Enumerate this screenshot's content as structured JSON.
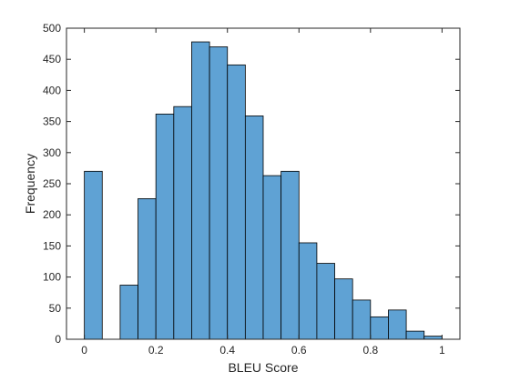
{
  "chart_data": {
    "type": "bar",
    "title": "",
    "xlabel": "BLEU Score",
    "ylabel": "Frequency",
    "xlim": [
      -0.05,
      1.05
    ],
    "ylim": [
      0,
      500
    ],
    "xticks": [
      0,
      0.2,
      0.4,
      0.6,
      0.8,
      1
    ],
    "xtick_labels": [
      "0",
      "0.2",
      "0.4",
      "0.6",
      "0.8",
      "1"
    ],
    "yticks": [
      0,
      50,
      100,
      150,
      200,
      250,
      300,
      350,
      400,
      450,
      500
    ],
    "ytick_labels": [
      "0",
      "50",
      "100",
      "150",
      "200",
      "250",
      "300",
      "350",
      "400",
      "450",
      "500"
    ],
    "bin_width": 0.05,
    "bin_starts": [
      0,
      0.05,
      0.1,
      0.15,
      0.2,
      0.25,
      0.3,
      0.35,
      0.4,
      0.45,
      0.5,
      0.55,
      0.6,
      0.65,
      0.7,
      0.75,
      0.8,
      0.85,
      0.9,
      0.95
    ],
    "values": [
      270,
      0,
      87,
      226,
      362,
      374,
      478,
      470,
      441,
      359,
      263,
      270,
      155,
      122,
      97,
      63,
      36,
      47,
      13,
      5
    ],
    "grid": false,
    "box": true,
    "bar_color": "#5fa2d4",
    "edge_color": "#000000",
    "axis_color": "#262626"
  }
}
